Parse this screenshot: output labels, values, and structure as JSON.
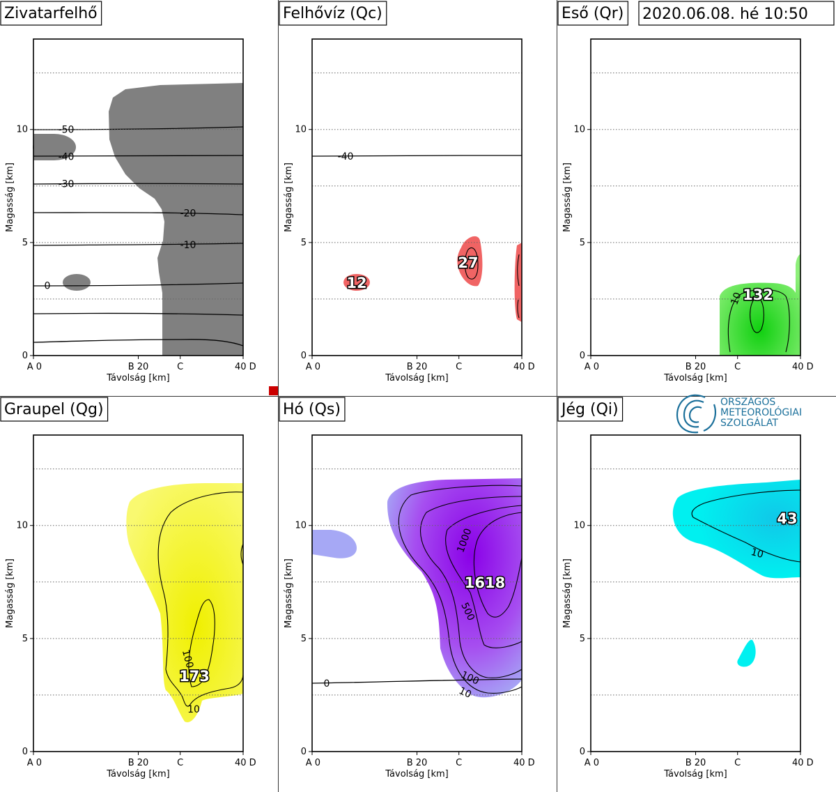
{
  "timestamp": "2020.06.08. hé 10:50",
  "logo": {
    "line1": "ORSZÁGOS",
    "line2": "METEOROLÓGIAI",
    "line3": "SZOLGÁLAT"
  },
  "colors": {
    "cloud_gray": "#808080",
    "qc": "#f06464",
    "qr": "#5ee83c",
    "qg": "#f7f718",
    "qs": "#9900ee",
    "qs_edge": "#9fa2f3",
    "qi": "#00f0f0",
    "logo": "#1a6f9a",
    "marker": "#cc0000"
  },
  "chart_data": [
    {
      "type": "area",
      "title": "Zivatarfelhő",
      "xlabel": "Távolság [km]",
      "ylabel": "Magasság [km]",
      "xlim": [
        0,
        40
      ],
      "ylim": [
        0,
        14
      ],
      "x_ticks": [
        "A 0",
        "B 20",
        "C",
        "40 D"
      ],
      "y_ticks": [
        "0",
        "5",
        "10"
      ],
      "grid_dotted_y": [
        2.5,
        7.5,
        12.5
      ],
      "temperature_isolines": [
        {
          "label": "-50",
          "y": 10.0
        },
        {
          "label": "-40",
          "y": 8.8
        },
        {
          "label": "-30",
          "y": 7.6
        },
        {
          "label": "-20",
          "y": 6.3
        },
        {
          "label": "-10",
          "y": 4.9
        },
        {
          "label": "0",
          "y": 3.1
        }
      ]
    },
    {
      "type": "area",
      "title": "Felhővíz (Qc)",
      "xlabel": "Távolság [km]",
      "ylabel": "Magasság [km]",
      "xlim": [
        0,
        40
      ],
      "ylim": [
        0,
        14
      ],
      "x_ticks": [
        "A 0",
        "B 20",
        "C",
        "40 D"
      ],
      "y_ticks": [
        "0",
        "5",
        "10"
      ],
      "maxima": [
        {
          "label": "12",
          "x": 8.5,
          "y": 3.2
        },
        {
          "label": "27",
          "x": 30,
          "y": 4.1
        }
      ],
      "isolines": [
        {
          "label": "-40",
          "y": 8.8
        }
      ]
    },
    {
      "type": "area",
      "title": "Eső (Qr)",
      "xlabel": "Távolság [km]",
      "ylabel": "Magasság [km]",
      "xlim": [
        0,
        40
      ],
      "ylim": [
        0,
        14
      ],
      "x_ticks": [
        "A 0",
        "B 20",
        "C",
        "40 D"
      ],
      "y_ticks": [
        "0",
        "5",
        "10"
      ],
      "maxima": [
        {
          "label": "132",
          "x": 31,
          "y": 2.7
        }
      ],
      "contour_labels": [
        "10"
      ]
    },
    {
      "type": "area",
      "title": "Graupel (Qg)",
      "xlabel": "Távolság [km]",
      "ylabel": "Magasság [km]",
      "xlim": [
        0,
        40
      ],
      "ylim": [
        0,
        14
      ],
      "x_ticks": [
        "A 0",
        "B 20",
        "C",
        "40 D"
      ],
      "y_ticks": [
        "0",
        "5",
        "10"
      ],
      "maxima": [
        {
          "label": "173",
          "x": 30.5,
          "y": 3.4
        }
      ],
      "contour_labels": [
        "10",
        "100"
      ]
    },
    {
      "type": "area",
      "title": "Hó (Qs)",
      "xlabel": "Távolság [km]",
      "ylabel": "Magasság [km]",
      "xlim": [
        0,
        40
      ],
      "ylim": [
        0,
        14
      ],
      "x_ticks": [
        "A 0",
        "B 20",
        "C",
        "40 D"
      ],
      "y_ticks": [
        "0",
        "5",
        "10"
      ],
      "maxima": [
        {
          "label": "1618",
          "x": 32,
          "y": 7.4
        }
      ],
      "contour_labels": [
        "10",
        "100",
        "500",
        "1000"
      ],
      "isolines": [
        {
          "label": "0",
          "y": 3.1
        }
      ]
    },
    {
      "type": "area",
      "title": "Jég (Qi)",
      "xlabel": "Távolság [km]",
      "ylabel": "Magasság [km]",
      "xlim": [
        0,
        40
      ],
      "ylim": [
        0,
        14
      ],
      "x_ticks": [
        "A 0",
        "B 20",
        "C",
        "40 D"
      ],
      "y_ticks": [
        "0",
        "5",
        "10"
      ],
      "maxima": [
        {
          "label": "43",
          "x": 38,
          "y": 10.4
        }
      ],
      "contour_labels": [
        "10"
      ]
    }
  ]
}
